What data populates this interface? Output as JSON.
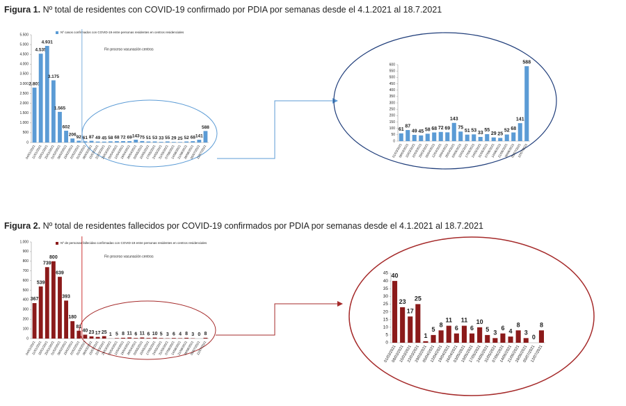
{
  "captions": [
    {
      "label": "Figura 1.",
      "text": "Nº total de residentes con COVID-19 confirmado por PDIA por semanas desde el 4.1.2021 al 18.7.2021"
    },
    {
      "label": "Figura 2.",
      "text": "Nº total de residentes fallecidos por COVID-19 confirmados por PDIA por semanas desde el 4.1.2021 al 18.7.2021"
    }
  ],
  "chart_data": [
    {
      "type": "bar",
      "categories": [
        "04/01/2021",
        "11/01/2021",
        "18/01/2021",
        "25/01/2021",
        "01/02/2021",
        "08/02/2021",
        "15/02/2021",
        "22/02/2021",
        "01/03/2021",
        "08/03/2021",
        "15/03/2021",
        "22/03/2021",
        "29/03/2021",
        "05/04/2021",
        "12/04/2021",
        "19/04/2021",
        "26/04/2021",
        "03/05/2021",
        "10/05/2021",
        "17/05/2021",
        "24/05/2021",
        "31/05/2021",
        "07/06/2021",
        "14/06/2021",
        "21/06/2021",
        "28/06/2021",
        "05/07/2021",
        "12/07/2021"
      ],
      "series": [
        {
          "name": "Nº casos confirmados con COVID-19 entre personas residentes en centros residenciales",
          "color": "#5b9bd5",
          "values": [
            2801,
            4535,
            4931,
            3175,
            1565,
            602,
            206,
            92,
            61,
            87,
            49,
            45,
            58,
            68,
            72,
            69,
            143,
            75,
            51,
            53,
            33,
            55,
            29,
            25,
            52,
            68,
            141,
            588
          ],
          "value_labels": [
            "2.801",
            "4.535",
            "4.931",
            "3.175",
            "1.565",
            "602",
            "206",
            "92",
            "61",
            "87",
            "49",
            "45",
            "58",
            "68",
            "72",
            "69",
            "143",
            "75",
            "51",
            "53",
            "33",
            "55",
            "29",
            "25",
            "52",
            "68",
            "141",
            "588"
          ]
        }
      ],
      "annotation": "Fin proceso vacunación centros",
      "ylim": [
        0,
        5500
      ],
      "yticks": [
        0,
        {
          "value": 500,
          "label": "500"
        },
        {
          "value": 1000,
          "label": "1.000"
        },
        {
          "value": 1500,
          "label": "1.500"
        },
        {
          "value": 2000,
          "label": "2.000"
        },
        {
          "value": 2500,
          "label": "2.500"
        },
        {
          "value": 3000,
          "label": "3.000"
        },
        {
          "value": 3500,
          "label": "3.500"
        },
        {
          "value": 4000,
          "label": "4.000"
        },
        {
          "value": 4500,
          "label": "4.500"
        },
        {
          "value": 5000,
          "label": "5.000"
        },
        {
          "value": 5500,
          "label": "5.500"
        }
      ]
    },
    {
      "type": "bar",
      "categories": [
        "01/03/2021",
        "08/03/2021",
        "15/03/2021",
        "22/03/2021",
        "29/03/2021",
        "05/04/2021",
        "12/04/2021",
        "19/04/2021",
        "26/04/2021",
        "03/05/2021",
        "10/05/2021",
        "17/05/2021",
        "24/05/2021",
        "31/05/2021",
        "07/06/2021",
        "14/06/2021",
        "21/06/2021",
        "28/06/2021",
        "05/07/2021",
        "12/07/2021"
      ],
      "color": "#5b9bd5",
      "values": [
        61,
        87,
        49,
        45,
        58,
        68,
        72,
        69,
        143,
        75,
        51,
        53,
        33,
        55,
        29,
        25,
        52,
        68,
        141,
        588
      ],
      "ylim": [
        0,
        600
      ],
      "yticks": [
        0,
        50,
        100,
        150,
        200,
        250,
        300,
        350,
        400,
        450,
        500,
        550,
        600
      ]
    },
    {
      "type": "bar",
      "categories": [
        "04/01/2021",
        "11/01/2021",
        "18/01/2021",
        "25/01/2021",
        "01/02/2021",
        "08/02/2021",
        "15/02/2021",
        "22/02/2021",
        "01/03/2021",
        "08/03/2021",
        "15/03/2021",
        "22/03/2021",
        "29/03/2021",
        "05/04/2021",
        "12/04/2021",
        "19/04/2021",
        "26/04/2021",
        "03/05/2021",
        "10/05/2021",
        "17/05/2021",
        "24/05/2021",
        "31/05/2021",
        "07/06/2021",
        "14/06/2021",
        "21/06/2021",
        "28/06/2021",
        "05/07/2021",
        "12/07/2021"
      ],
      "series": [
        {
          "name": "Nº de personas fallecidas confirmadas con COVID-19 entre personas residentes en centros residenciales",
          "color": "#8b1a1a",
          "values": [
            367,
            539,
            739,
            800,
            639,
            393,
            180,
            81,
            40,
            23,
            17,
            25,
            1,
            5,
            8,
            11,
            6,
            11,
            6,
            10,
            5,
            3,
            6,
            4,
            8,
            3,
            0,
            8
          ]
        }
      ],
      "annotation": "Fin proceso vacunación centros",
      "ylim": [
        0,
        1000
      ],
      "yticks": [
        0,
        100,
        200,
        300,
        400,
        500,
        600,
        700,
        800,
        900,
        {
          "value": 1000,
          "label": "1.000"
        }
      ]
    },
    {
      "type": "bar",
      "categories": [
        "01/03/2021",
        "08/03/2021",
        "15/03/2021",
        "22/03/2021",
        "29/03/2021",
        "05/04/2021",
        "12/04/2021",
        "19/04/2021",
        "26/04/2021",
        "03/05/2021",
        "10/05/2021",
        "17/05/2021",
        "24/05/2021",
        "31/05/2021",
        "07/06/2021",
        "14/06/2021",
        "21/06/2021",
        "28/06/2021",
        "05/07/2021",
        "12/07/2021"
      ],
      "color": "#8b1a1a",
      "values": [
        40,
        23,
        17,
        25,
        1,
        5,
        8,
        11,
        6,
        11,
        6,
        10,
        5,
        3,
        6,
        4,
        8,
        3,
        0,
        8
      ],
      "ylim": [
        0,
        45
      ],
      "yticks": [
        0,
        5,
        10,
        15,
        20,
        25,
        30,
        35,
        40,
        45
      ]
    }
  ]
}
